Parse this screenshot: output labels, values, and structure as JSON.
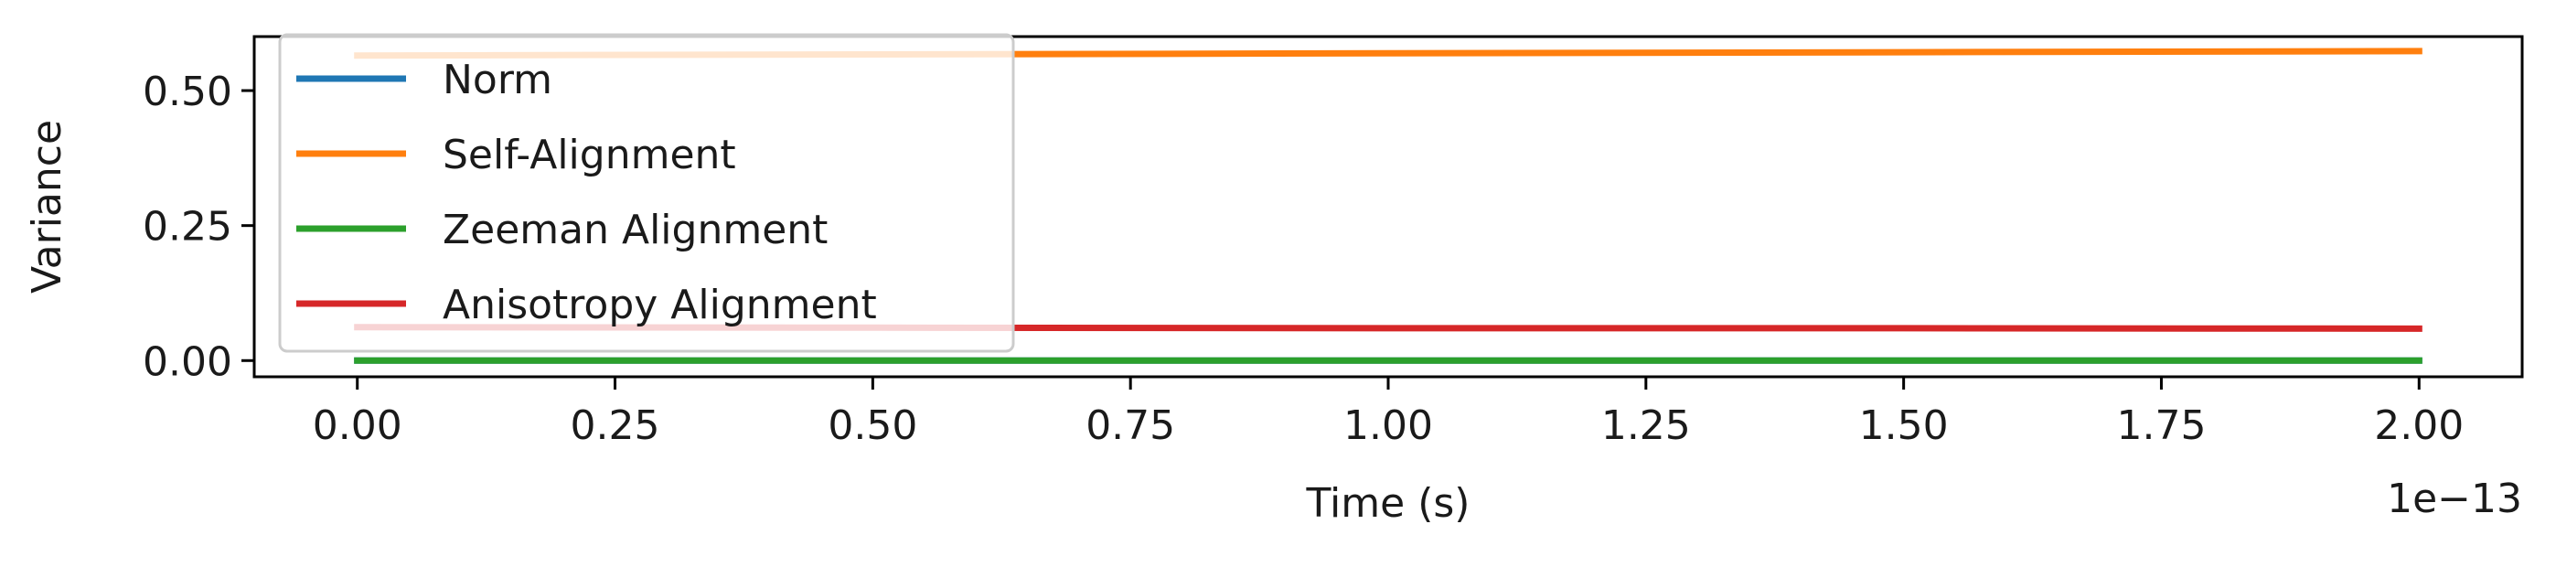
{
  "chart_data": {
    "type": "line",
    "title": "",
    "xlabel": "Time (s)",
    "ylabel": "Variance",
    "x_offset_label": "1e−13",
    "xlim": [
      -0.1,
      2.1
    ],
    "ylim": [
      -0.03,
      0.6
    ],
    "x_ticks": [
      0.0,
      0.25,
      0.5,
      0.75,
      1.0,
      1.25,
      1.5,
      1.75,
      2.0
    ],
    "x_tick_labels": [
      "0.00",
      "0.25",
      "0.50",
      "0.75",
      "1.00",
      "1.25",
      "1.50",
      "1.75",
      "2.00"
    ],
    "y_ticks": [
      0.0,
      0.25,
      0.5
    ],
    "y_tick_labels": [
      "0.00",
      "0.25",
      "0.50"
    ],
    "grid": false,
    "legend_position": "upper-left",
    "x": [
      0.0,
      0.5,
      1.0,
      1.5,
      2.0
    ],
    "series": [
      {
        "name": "Norm",
        "color": "#1f77b4",
        "values": [
          0.0,
          0.0,
          0.0,
          0.0,
          0.0
        ]
      },
      {
        "name": "Self-Alignment",
        "color": "#ff7f0e",
        "values": [
          0.565,
          0.567,
          0.569,
          0.571,
          0.573
        ]
      },
      {
        "name": "Zeeman Alignment",
        "color": "#2ca02c",
        "values": [
          0.0,
          0.0,
          0.0,
          0.0,
          0.0
        ]
      },
      {
        "name": "Anisotropy Alignment",
        "color": "#d62728",
        "values": [
          0.062,
          0.061,
          0.06,
          0.06,
          0.059
        ]
      }
    ]
  }
}
